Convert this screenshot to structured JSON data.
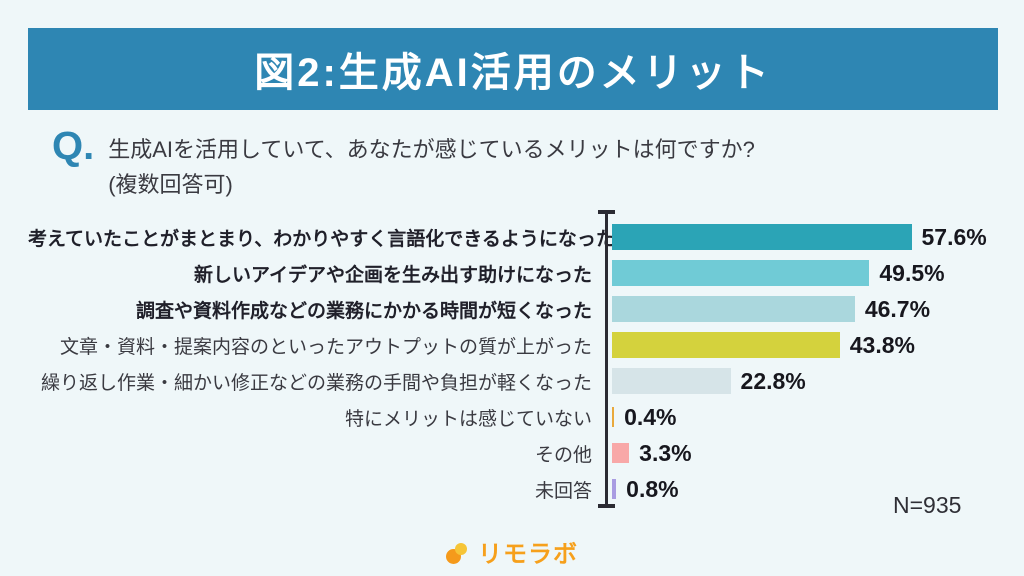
{
  "header": {
    "title": "図2:生成AI活用のメリット",
    "bg_color": "#2e86b3",
    "text_color": "#ffffff"
  },
  "question": {
    "prefix": "Q.",
    "line1": "生成AIを活用していて、あなたが感じているメリットは何ですか?",
    "line2": "(複数回答可)"
  },
  "chart_data": {
    "type": "bar",
    "orientation": "horizontal",
    "title": "図2:生成AI活用のメリット",
    "categories": [
      "考えていたことがまとまり、わかりやすく言語化できるようになった",
      "新しいアイデアや企画を生み出す助けになった",
      "調査や資料作成などの業務にかかる時間が短くなった",
      "文章・資料・提案内容のといったアウトプットの質が上がった",
      "繰り返し作業・細かい修正などの業務の手間や負担が軽くなった",
      "特にメリットは感じていない",
      "その他",
      "未回答"
    ],
    "values": [
      57.6,
      49.5,
      46.7,
      43.8,
      22.8,
      0.4,
      3.3,
      0.8
    ],
    "value_labels": [
      "57.6%",
      "49.5%",
      "46.7%",
      "43.8%",
      "22.8%",
      "0.4%",
      "3.3%",
      "0.8%"
    ],
    "bar_colors": [
      "#2ba4b6",
      "#70cbd6",
      "#aad7dd",
      "#d4d23d",
      "#d6e4e8",
      "#e9a93c",
      "#f8a8a8",
      "#a99ce2"
    ],
    "bold_labels": [
      true,
      true,
      true,
      false,
      false,
      false,
      false,
      false
    ],
    "xlim": [
      0,
      60
    ],
    "grid": false,
    "legend": false,
    "sample_size_label": "N=935"
  },
  "footer": {
    "logo_text": "リモラボ",
    "logo_orange": "#f59a1b",
    "logo_yellow": "#f6c537"
  }
}
